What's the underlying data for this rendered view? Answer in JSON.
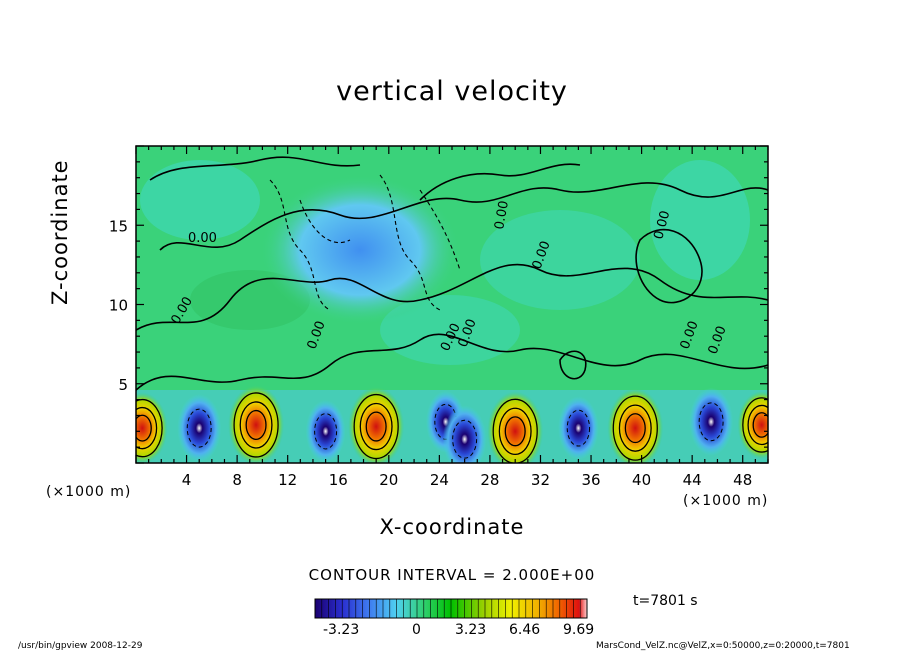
{
  "title": "vertical velocity",
  "xlabel": "X-coordinate",
  "ylabel": "Z-coordinate",
  "x_unit_left": "(×1000 m)",
  "x_unit_right": "(×1000 m)",
  "contour_interval": "CONTOUR INTERVAL = 2.000E+00",
  "time_label": "t=7801 s",
  "footer_left": "/usr/bin/gpview   2008-12-29",
  "footer_right": "MarsCond_VelZ.nc@VelZ,x=0:50000,z=0:20000,t=7801",
  "colorbar_ticks": [
    "-3.23",
    "0",
    "3.23",
    "6.46",
    "9.69"
  ],
  "colors": {
    "colorbar": [
      "#1a0070",
      "#2a2fd0",
      "#3f7cf0",
      "#4fd0f0",
      "#30d070",
      "#00c000",
      "#9ad000",
      "#f0f000",
      "#f0b000",
      "#f06000",
      "#e01010",
      "#ffd0d0"
    ],
    "background_field": "#3ad27a",
    "line": "#000000"
  },
  "chart_data": {
    "type": "heatmap",
    "title": "vertical velocity",
    "xlabel": "X-coordinate",
    "ylabel": "Z-coordinate",
    "x_ticks": [
      4,
      8,
      12,
      16,
      20,
      24,
      28,
      32,
      36,
      40,
      44,
      48
    ],
    "y_ticks": [
      5,
      10,
      15
    ],
    "xlim": [
      0,
      50
    ],
    "ylim": [
      0,
      20
    ],
    "colorbar_range": [
      -4.85,
      9.69
    ],
    "colorbar_ticks": [
      -3.23,
      0,
      3.23,
      6.46,
      9.69
    ],
    "contour_labels": [
      "0.00",
      "0.00",
      "0.00",
      "0.00",
      "0.00",
      "0.00",
      "0.00",
      "0.00",
      "0.00",
      "0.00"
    ],
    "updraft_cores": [
      {
        "x": 0.5,
        "z": 2.2,
        "w": 8.5
      },
      {
        "x": 9.5,
        "z": 2.4,
        "w": 9.69
      },
      {
        "x": 19.0,
        "z": 2.3,
        "w": 9.69
      },
      {
        "x": 30.0,
        "z": 2.0,
        "w": 9.69
      },
      {
        "x": 39.5,
        "z": 2.2,
        "w": 9.69
      },
      {
        "x": 49.5,
        "z": 2.4,
        "w": 8.0
      }
    ],
    "downdraft_cores": [
      {
        "x": 5.0,
        "z": 2.2,
        "w": -4.8
      },
      {
        "x": 15.0,
        "z": 2.0,
        "w": -3.2
      },
      {
        "x": 24.5,
        "z": 2.6,
        "w": -3.0
      },
      {
        "x": 26.0,
        "z": 1.5,
        "w": -4.8
      },
      {
        "x": 35.0,
        "z": 2.2,
        "w": -3.5
      },
      {
        "x": 45.5,
        "z": 2.6,
        "w": -4.8
      }
    ]
  }
}
